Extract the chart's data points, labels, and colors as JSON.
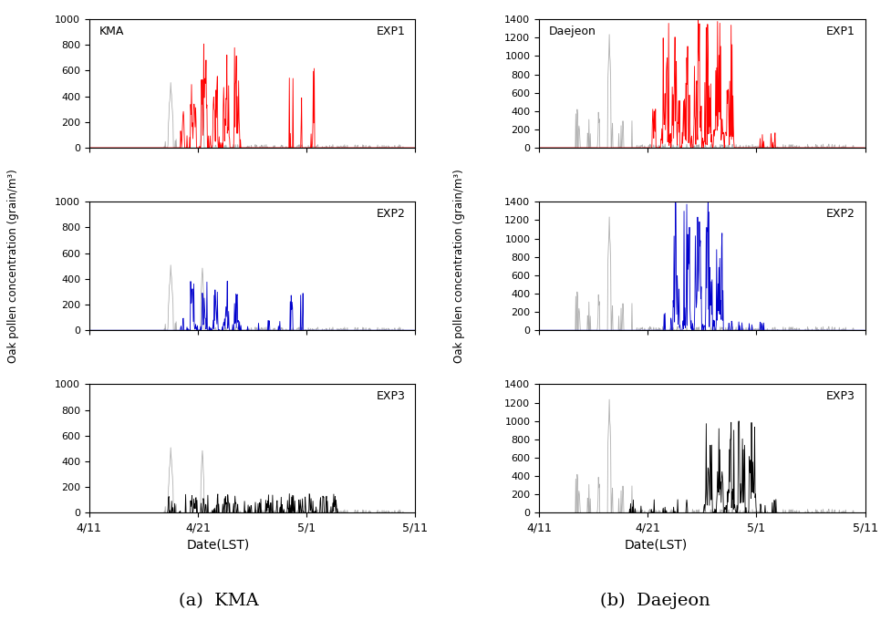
{
  "title_a": "(a)  KMA",
  "title_b": "(b)  Daejeon",
  "xlabel": "Date(LST)",
  "ylabel": "Oak pollen concentration (grain/m³)",
  "exp_labels": [
    "EXP1",
    "EXP2",
    "EXP3"
  ],
  "site_label_left": "KMA",
  "site_label_right": "Daejeon",
  "colors_sim": [
    "#ff0000",
    "#0000cc",
    "#000000"
  ],
  "color_obs": "#b0b0b0",
  "ylim_kma": [
    0,
    1000
  ],
  "ylim_daejeon": [
    0,
    1400
  ],
  "yticks_kma": [
    0,
    200,
    400,
    600,
    800,
    1000
  ],
  "yticks_daejeon": [
    0,
    200,
    400,
    600,
    800,
    1000,
    1200,
    1400
  ],
  "xtick_labels": [
    "4/11",
    "4/21",
    "5/1",
    "5/11"
  ],
  "linewidth": 0.6
}
